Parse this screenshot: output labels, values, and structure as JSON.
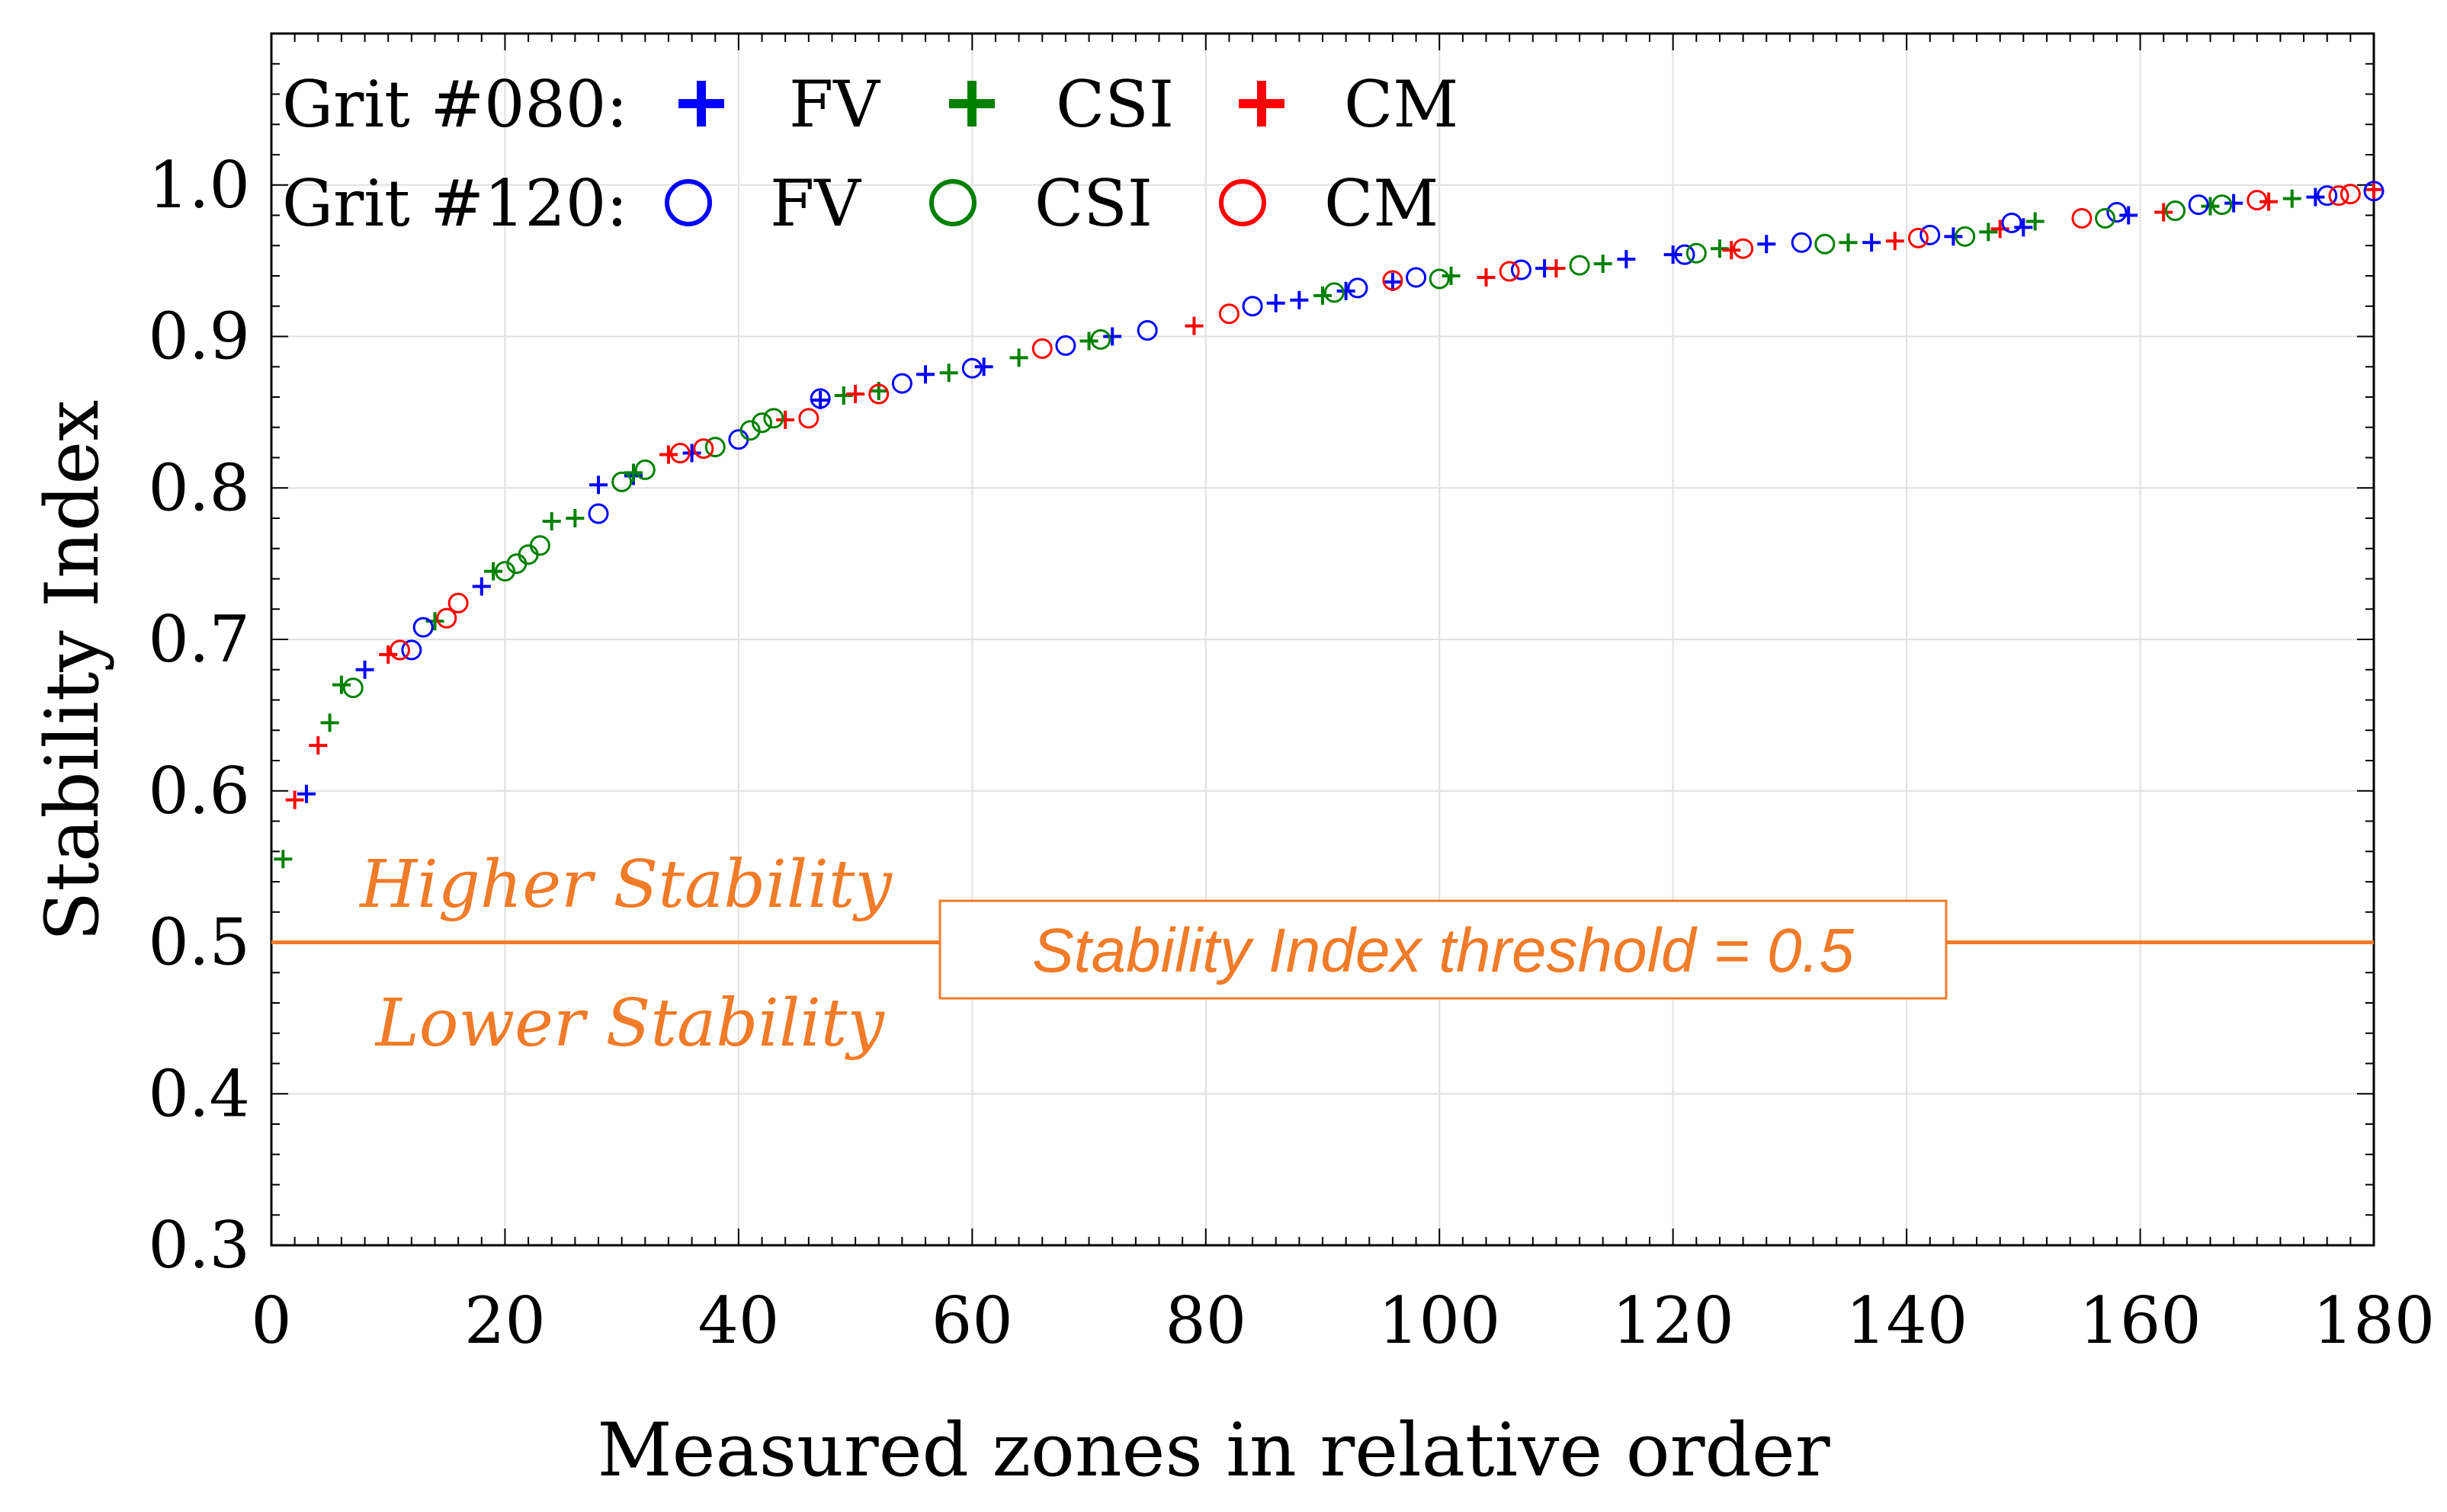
{
  "chart_data": {
    "type": "scatter",
    "title": "",
    "xlabel": "Measured zones in relative order",
    "ylabel": "Stability Index",
    "xlim": [
      0,
      180
    ],
    "ylim": [
      0.3,
      1.1
    ],
    "x_ticks": [
      "0",
      "20",
      "40",
      "60",
      "80",
      "100",
      "120",
      "140",
      "160",
      "180"
    ],
    "y_ticks": [
      "0.3",
      "0.4",
      "0.5",
      "0.6",
      "0.7",
      "0.8",
      "0.9",
      "1.0"
    ],
    "grid": true,
    "legend": {
      "position": "top-left",
      "rows": [
        {
          "label": "Grit #080:",
          "marker": "plus",
          "entries": [
            "FV",
            "CSI",
            "CM"
          ]
        },
        {
          "label": "Grit #120:",
          "marker": "circle",
          "entries": [
            "FV",
            "CSI",
            "CM"
          ]
        }
      ]
    },
    "colors": {
      "FV": "#0000ff",
      "CSI": "#008000",
      "CM": "#ff0000",
      "threshold": "#f07b28"
    },
    "threshold": {
      "value": 0.5,
      "label": "Stability Index threshold = 0.5"
    },
    "annotations": {
      "above": "Higher Stability",
      "below": "Lower Stability"
    },
    "series": [
      {
        "name": "Grit #080 FV",
        "grit": "#080",
        "measure": "FV",
        "marker": "plus",
        "color": "#0000ff",
        "x": [
          3,
          8,
          18,
          28,
          31,
          36,
          47,
          56,
          61,
          72,
          86,
          88,
          92,
          96,
          109,
          116,
          120,
          128,
          137,
          144,
          150,
          159,
          168,
          175
        ],
        "y": [
          0.598,
          0.68,
          0.735,
          0.802,
          0.808,
          0.823,
          0.858,
          0.875,
          0.88,
          0.9,
          0.922,
          0.924,
          0.93,
          0.936,
          0.945,
          0.951,
          0.954,
          0.961,
          0.962,
          0.966,
          0.972,
          0.98,
          0.988,
          0.992
        ]
      },
      {
        "name": "Grit #080 CSI",
        "grit": "#080",
        "measure": "CSI",
        "marker": "plus",
        "color": "#008000",
        "x": [
          1,
          5,
          6,
          14,
          19,
          24,
          26,
          31,
          49,
          52,
          58,
          64,
          70,
          90,
          101,
          114,
          124,
          135,
          147,
          151,
          166,
          173
        ],
        "y": [
          0.555,
          0.645,
          0.67,
          0.712,
          0.745,
          0.778,
          0.78,
          0.81,
          0.861,
          0.864,
          0.876,
          0.886,
          0.897,
          0.927,
          0.94,
          0.948,
          0.958,
          0.962,
          0.969,
          0.976,
          0.986,
          0.991
        ]
      },
      {
        "name": "Grit #080 CM",
        "grit": "#080",
        "measure": "CM",
        "marker": "plus",
        "color": "#ff0000",
        "x": [
          2,
          4,
          10,
          34,
          44,
          50,
          79,
          104,
          110,
          125,
          139,
          148,
          162,
          171,
          180
        ],
        "y": [
          0.594,
          0.63,
          0.69,
          0.822,
          0.845,
          0.862,
          0.907,
          0.939,
          0.945,
          0.957,
          0.963,
          0.971,
          0.982,
          0.989,
          0.997
        ]
      },
      {
        "name": "Grit #120 FV",
        "grit": "#120",
        "measure": "FV",
        "marker": "circle",
        "color": "#0000ff",
        "x": [
          12,
          13,
          28,
          40,
          47,
          54,
          60,
          68,
          75,
          84,
          93,
          98,
          107,
          121,
          131,
          142,
          149,
          158,
          165,
          176,
          180
        ],
        "y": [
          0.693,
          0.708,
          0.783,
          0.832,
          0.859,
          0.869,
          0.879,
          0.894,
          0.904,
          0.92,
          0.932,
          0.939,
          0.944,
          0.954,
          0.962,
          0.967,
          0.975,
          0.982,
          0.987,
          0.993,
          0.996
        ]
      },
      {
        "name": "Grit #120 CSI",
        "grit": "#120",
        "measure": "CSI",
        "marker": "circle",
        "color": "#008000",
        "x": [
          7,
          20,
          21,
          22,
          23,
          30,
          32,
          38,
          41,
          42,
          43,
          71,
          91,
          100,
          112,
          122,
          133,
          145,
          157,
          163,
          167
        ],
        "y": [
          0.668,
          0.745,
          0.75,
          0.756,
          0.762,
          0.804,
          0.812,
          0.827,
          0.838,
          0.843,
          0.846,
          0.898,
          0.929,
          0.938,
          0.947,
          0.955,
          0.961,
          0.966,
          0.978,
          0.983,
          0.987
        ]
      },
      {
        "name": "Grit #120 CM",
        "grit": "#120",
        "measure": "CM",
        "marker": "circle",
        "color": "#ff0000",
        "x": [
          11,
          15,
          16,
          35,
          37,
          46,
          52,
          66,
          82,
          96,
          106,
          126,
          141,
          155,
          170,
          177,
          178
        ],
        "y": [
          0.693,
          0.714,
          0.724,
          0.823,
          0.826,
          0.846,
          0.862,
          0.892,
          0.915,
          0.937,
          0.943,
          0.958,
          0.965,
          0.978,
          0.99,
          0.993,
          0.994
        ]
      }
    ]
  }
}
